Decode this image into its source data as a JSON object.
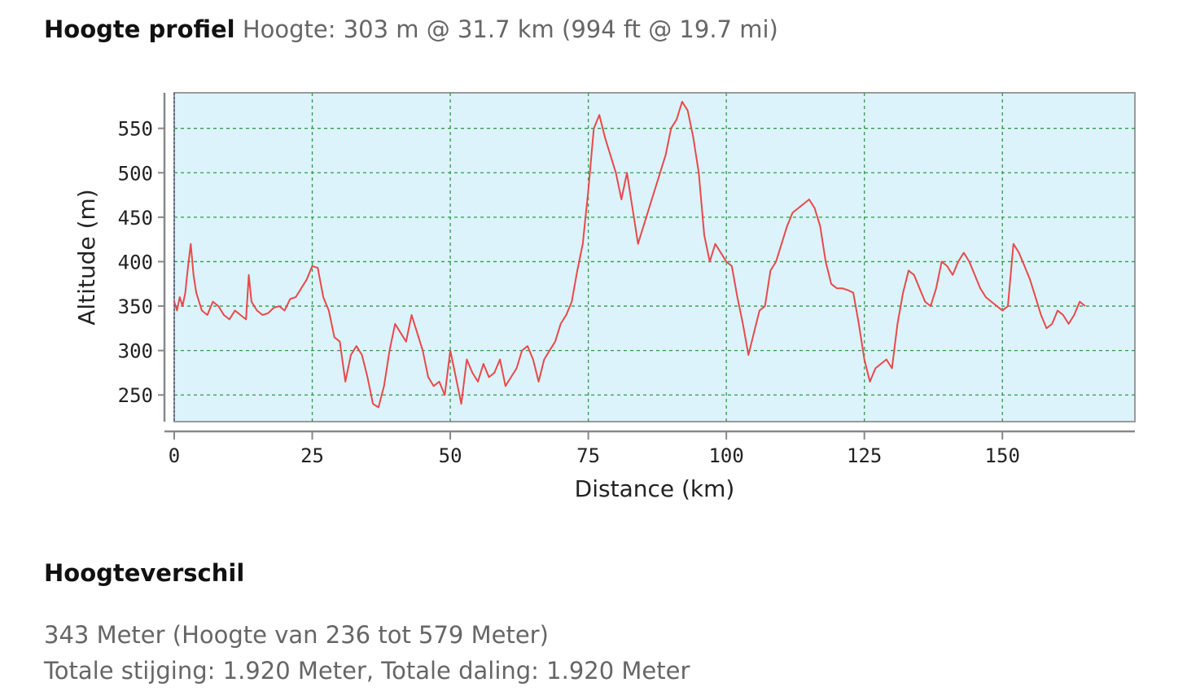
{
  "header": {
    "title": "Hoogte profiel",
    "info": "Hoogte: 303 m @ 31.7 km (994 ft @ 19.7 mi)"
  },
  "stats": {
    "title": "Hoogteverschil",
    "line1": "343 Meter (Hoogte van 236 tot 579 Meter)",
    "line2": "Totale stijging: 1.920 Meter, Totale daling: 1.920 Meter"
  },
  "colors": {
    "plot_background": "#dcf3fb",
    "grid": "#2f9b49",
    "line": "#e8494b",
    "axis": "#888888"
  },
  "chart_data": {
    "type": "line",
    "xlabel": "Distance (km)",
    "ylabel": "Altitude (m)",
    "xlim": [
      0,
      174
    ],
    "ylim": [
      220,
      590
    ],
    "xticks": [
      0,
      25,
      50,
      75,
      100,
      125,
      150
    ],
    "yticks": [
      250,
      300,
      350,
      400,
      450,
      500,
      550
    ],
    "grid": true,
    "legend": "none",
    "series": [
      {
        "x": [
          0,
          0.5,
          1,
          1.5,
          2,
          2.5,
          3,
          3.5,
          4,
          5,
          6,
          7,
          8,
          9,
          10,
          11,
          12,
          13,
          13.5,
          14,
          15,
          16,
          17,
          18,
          19,
          20,
          21,
          22,
          23,
          24,
          25,
          26,
          27,
          28,
          29,
          30,
          31,
          32,
          33,
          34,
          35,
          36,
          37,
          38,
          39,
          40,
          41,
          42,
          43,
          44,
          45,
          46,
          47,
          48,
          49,
          50,
          51,
          52,
          53,
          54,
          55,
          56,
          57,
          58,
          59,
          60,
          61,
          62,
          63,
          64,
          65,
          66,
          67,
          68,
          69,
          70,
          71,
          72,
          73,
          74,
          75,
          76,
          77,
          78,
          79,
          80,
          81,
          82,
          83,
          84,
          85,
          86,
          87,
          88,
          89,
          90,
          91,
          92,
          93,
          94,
          95,
          96,
          97,
          98,
          99,
          100,
          101,
          102,
          103,
          104,
          105,
          106,
          107,
          108,
          109,
          110,
          111,
          112,
          113,
          114,
          115,
          116,
          117,
          118,
          119,
          120,
          121,
          122,
          123,
          124,
          125,
          126,
          127,
          128,
          129,
          130,
          131,
          132,
          133,
          134,
          135,
          136,
          137,
          138,
          139,
          140,
          141,
          142,
          143,
          144,
          145,
          146,
          147,
          148,
          149,
          150,
          151,
          152,
          153,
          154,
          155,
          156,
          157,
          158,
          159,
          160,
          161,
          162,
          163,
          164,
          165
        ],
        "y": [
          355,
          345,
          360,
          350,
          365,
          395,
          420,
          385,
          365,
          345,
          340,
          355,
          350,
          340,
          335,
          345,
          340,
          335,
          385,
          355,
          345,
          340,
          342,
          348,
          350,
          345,
          358,
          360,
          370,
          380,
          395,
          393,
          360,
          345,
          315,
          310,
          265,
          295,
          305,
          295,
          270,
          240,
          236,
          260,
          300,
          330,
          320,
          310,
          340,
          320,
          300,
          270,
          260,
          265,
          250,
          300,
          270,
          240,
          290,
          275,
          265,
          285,
          270,
          275,
          290,
          260,
          270,
          280,
          300,
          305,
          290,
          265,
          290,
          300,
          310,
          330,
          340,
          355,
          390,
          420,
          480,
          550,
          565,
          540,
          520,
          500,
          470,
          500,
          460,
          420,
          440,
          460,
          480,
          500,
          520,
          550,
          560,
          580,
          570,
          540,
          500,
          430,
          400,
          420,
          410,
          400,
          395,
          360,
          330,
          295,
          320,
          345,
          350,
          390,
          400,
          420,
          440,
          455,
          460,
          465,
          470,
          460,
          440,
          400,
          375,
          370,
          370,
          368,
          365,
          330,
          290,
          265,
          280,
          285,
          290,
          280,
          330,
          365,
          390,
          385,
          370,
          355,
          350,
          370,
          400,
          395,
          385,
          400,
          410,
          400,
          385,
          370,
          360,
          355,
          350,
          345,
          350,
          420,
          410,
          395,
          380,
          360,
          340,
          325,
          330,
          345,
          340,
          330,
          340,
          355,
          350
        ]
      }
    ]
  }
}
